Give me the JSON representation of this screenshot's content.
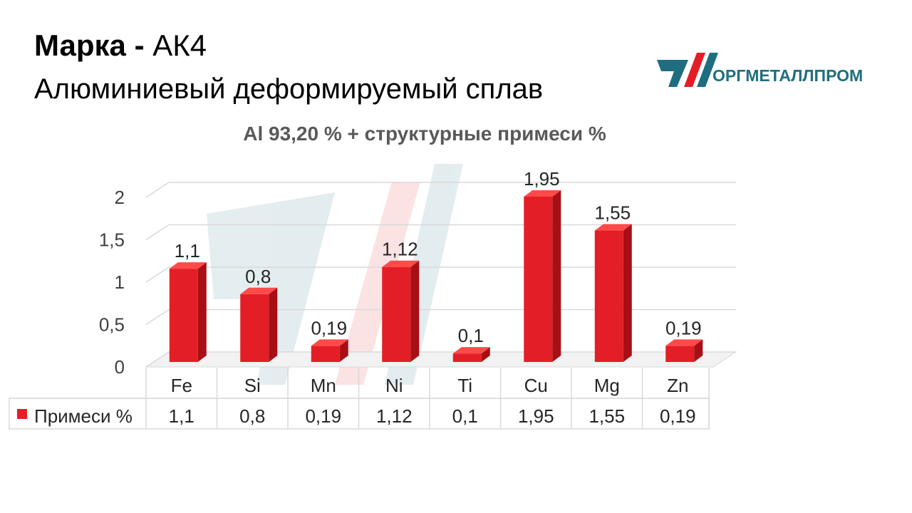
{
  "header": {
    "brand_label": "Марка",
    "separator": "-",
    "grade": "АК4",
    "subtitle": "Алюминиевый деформируемый сплав"
  },
  "logo": {
    "text": "ОРГМЕТАЛЛПРОМ"
  },
  "colors": {
    "bar": "#e41e26",
    "bar_side": "#a80f14",
    "bar_top": "#ff4a4a",
    "grid": "#d9d9d9",
    "logo_teal": "#1f6e80",
    "logo_red": "#e41e26"
  },
  "chart_data": {
    "type": "bar",
    "title": "Al 93,20 % + структурные примеси %",
    "categories": [
      "Fe",
      "Si",
      "Mn",
      "Ni",
      "Ti",
      "Cu",
      "Mg",
      "Zn"
    ],
    "series": [
      {
        "name": "Примеси %",
        "values": [
          1.1,
          0.8,
          0.19,
          1.12,
          0.1,
          1.95,
          1.55,
          0.19
        ]
      }
    ],
    "data_labels": [
      "1,1",
      "0,8",
      "0,19",
      "1,12",
      "0,1",
      "1,95",
      "1,55",
      "0,19"
    ],
    "yticks": [
      "0",
      "0,5",
      "1",
      "1,5",
      "2"
    ],
    "ylim": [
      0,
      2
    ],
    "grid": true,
    "legend": "data-table",
    "xlabel": "",
    "ylabel": ""
  }
}
